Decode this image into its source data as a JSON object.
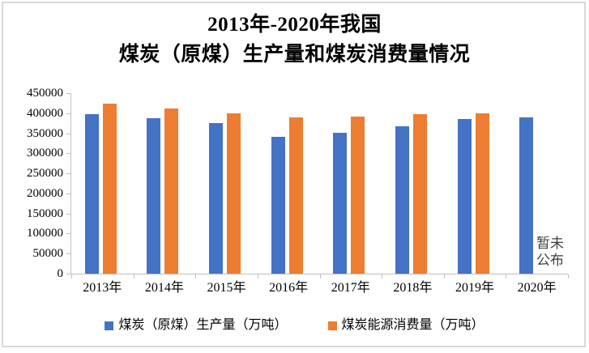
{
  "title": {
    "line1": "2013年-2020年我国",
    "line2": "煤炭（原煤）生产量和煤炭消费量情况"
  },
  "annotation": {
    "line1": "暂未",
    "line2": "公布"
  },
  "colors": {
    "production": "#4472C4",
    "consumption": "#ED7D31",
    "axis": "#BFBFBF",
    "frame": "#D8D8D8",
    "annotation_text": "#3F3F3F"
  },
  "chart_data": {
    "type": "bar",
    "title": "2013年-2020年我国煤炭（原煤）生产量和煤炭消费量情况",
    "categories": [
      "2013年",
      "2014年",
      "2015年",
      "2016年",
      "2017年",
      "2018年",
      "2019年",
      "2020年"
    ],
    "series": [
      {
        "name": "煤炭（原煤）生产量（万吨）",
        "color": "#4472C4",
        "values": [
          397000,
          387000,
          375000,
          341000,
          352000,
          368000,
          385000,
          390000
        ]
      },
      {
        "name": "煤炭能源消费量（万吨）",
        "color": "#ED7D31",
        "values": [
          424000,
          412000,
          400000,
          389000,
          392000,
          397000,
          399000,
          null
        ]
      }
    ],
    "ylim": [
      0,
      450000
    ],
    "ytick_step": 50000,
    "ytick_labels": [
      "450000",
      "400000",
      "350000",
      "300000",
      "250000",
      "200000",
      "150000",
      "100000",
      "50000",
      "0"
    ],
    "xlabel": "",
    "ylabel": "",
    "grid": false,
    "legend_position": "bottom",
    "annotation": {
      "text": "暂未公布",
      "target_category": "2020年",
      "target_series": "煤炭能源消费量（万吨）"
    }
  }
}
